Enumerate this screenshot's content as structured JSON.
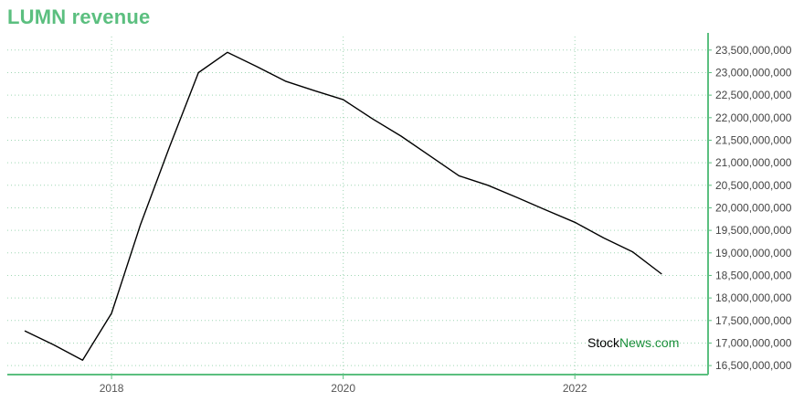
{
  "chart_data": {
    "type": "line",
    "title": "LUMN revenue",
    "xlabel": "",
    "ylabel": "",
    "x": [
      2017.25,
      2017.5,
      2017.75,
      2018.0,
      2018.25,
      2018.5,
      2018.75,
      2019.0,
      2019.25,
      2019.5,
      2019.75,
      2020.0,
      2020.25,
      2020.5,
      2020.75,
      2021.0,
      2021.25,
      2021.5,
      2021.75,
      2022.0,
      2022.25,
      2022.5,
      2022.75
    ],
    "series": [
      {
        "values": [
          17270000000,
          16960000000,
          16620000000,
          17660000000,
          19630000000,
          21350000000,
          23000000000,
          23450000000,
          23140000000,
          22810000000,
          22600000000,
          22400000000,
          21980000000,
          21590000000,
          21150000000,
          20710000000,
          20500000000,
          20230000000,
          19950000000,
          19680000000,
          19330000000,
          19020000000,
          18530000000
        ]
      }
    ],
    "xticks": [
      "2018",
      "2020",
      "2022"
    ],
    "yticks": [
      "16,500,000,000",
      "17,000,000,000",
      "17,500,000,000",
      "18,000,000,000",
      "18,500,000,000",
      "19,000,000,000",
      "19,500,000,000",
      "20,000,000,000",
      "20,500,000,000",
      "21,000,000,000",
      "21,500,000,000",
      "22,000,000,000",
      "22,500,000,000",
      "23,000,000,000",
      "23,500,000,000"
    ],
    "ylim": [
      16300000000,
      23800000000
    ],
    "xlim": [
      2017.1,
      2023.15
    ],
    "grid": true,
    "y_axis_side": "right",
    "line_color": "#000000",
    "accent_color": "#5bbf7f"
  },
  "watermark": {
    "part1": "Stock",
    "part2": "News.com"
  }
}
